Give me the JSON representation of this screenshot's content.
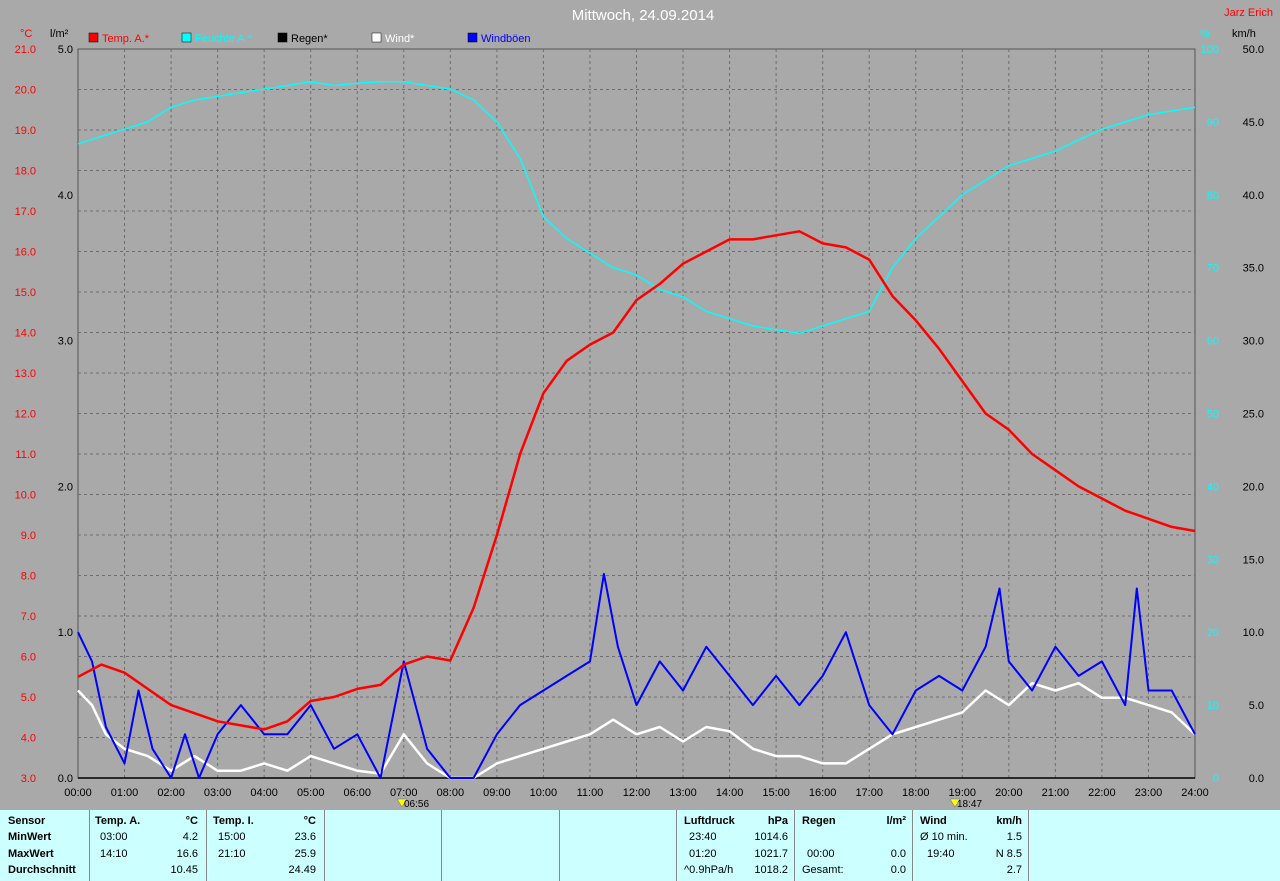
{
  "header": {
    "title": "Mittwoch, 24.09.2014",
    "author": "Jarz Erich",
    "unit_temp": "°C",
    "unit_rain": "l/m²",
    "unit_hum": "%",
    "unit_wind": "km/h"
  },
  "legend": [
    {
      "label": "Temp. A.*",
      "color": "#ff0000"
    },
    {
      "label": "Feuchte A.*",
      "color": "#00ffff"
    },
    {
      "label": "Regen*",
      "color": "#000000"
    },
    {
      "label": "Wind*",
      "color": "#ffffff"
    },
    {
      "label": "Windböen",
      "color": "#0000ff"
    }
  ],
  "markers": {
    "sunrise": "06:56",
    "sunset": "18:47"
  },
  "chart_data": {
    "type": "line",
    "title": "Mittwoch, 24.09.2014",
    "x_unit": "hours",
    "x_ticks": [
      "00:00",
      "01:00",
      "02:00",
      "03:00",
      "04:00",
      "05:00",
      "06:00",
      "07:00",
      "08:00",
      "09:00",
      "10:00",
      "11:00",
      "12:00",
      "13:00",
      "14:00",
      "15:00",
      "16:00",
      "17:00",
      "18:00",
      "19:00",
      "20:00",
      "21:00",
      "22:00",
      "23:00",
      "24:00"
    ],
    "axes": {
      "temp": {
        "ylim": [
          3.0,
          21.0
        ],
        "ticks": [
          "3.0",
          "4.0",
          "5.0",
          "6.0",
          "7.0",
          "8.0",
          "9.0",
          "10.0",
          "11.0",
          "12.0",
          "13.0",
          "14.0",
          "15.0",
          "16.0",
          "17.0",
          "18.0",
          "19.0",
          "20.0",
          "21.0"
        ]
      },
      "rain": {
        "ylim": [
          0.0,
          5.0
        ],
        "ticks": [
          "0.0",
          "1.0",
          "2.0",
          "3.0",
          "4.0",
          "5.0"
        ]
      },
      "hum": {
        "ylim": [
          0,
          100
        ],
        "ticks": [
          "0",
          "10",
          "20",
          "30",
          "40",
          "50",
          "60",
          "70",
          "80",
          "90",
          "100"
        ]
      },
      "wind": {
        "ylim": [
          0.0,
          50.0
        ],
        "ticks": [
          "0.0",
          "5.0",
          "10.0",
          "15.0",
          "20.0",
          "25.0",
          "30.0",
          "35.0",
          "40.0",
          "45.0",
          "50.0"
        ]
      }
    },
    "grid": true,
    "series": [
      {
        "name": "Temp. A.*",
        "axis": "temp",
        "color": "#ff0000",
        "points": [
          [
            0,
            5.5
          ],
          [
            0.5,
            5.8
          ],
          [
            1,
            5.6
          ],
          [
            1.5,
            5.2
          ],
          [
            2,
            4.8
          ],
          [
            2.5,
            4.6
          ],
          [
            3,
            4.4
          ],
          [
            3.5,
            4.3
          ],
          [
            4,
            4.2
          ],
          [
            4.5,
            4.4
          ],
          [
            5,
            4.9
          ],
          [
            5.5,
            5.0
          ],
          [
            6,
            5.2
          ],
          [
            6.5,
            5.3
          ],
          [
            7,
            5.8
          ],
          [
            7.5,
            6.0
          ],
          [
            8,
            5.9
          ],
          [
            8.5,
            7.2
          ],
          [
            9,
            9.0
          ],
          [
            9.5,
            11.0
          ],
          [
            10,
            12.5
          ],
          [
            10.5,
            13.3
          ],
          [
            11,
            13.7
          ],
          [
            11.5,
            14.0
          ],
          [
            12,
            14.8
          ],
          [
            12.5,
            15.2
          ],
          [
            13,
            15.7
          ],
          [
            13.5,
            16.0
          ],
          [
            14,
            16.3
          ],
          [
            14.5,
            16.3
          ],
          [
            15,
            16.4
          ],
          [
            15.5,
            16.5
          ],
          [
            16,
            16.2
          ],
          [
            16.5,
            16.1
          ],
          [
            17,
            15.8
          ],
          [
            17.5,
            14.9
          ],
          [
            18,
            14.3
          ],
          [
            18.5,
            13.6
          ],
          [
            19,
            12.8
          ],
          [
            19.5,
            12.0
          ],
          [
            20,
            11.6
          ],
          [
            20.5,
            11.0
          ],
          [
            21,
            10.6
          ],
          [
            21.5,
            10.2
          ],
          [
            22,
            9.9
          ],
          [
            22.5,
            9.6
          ],
          [
            23,
            9.4
          ],
          [
            23.5,
            9.2
          ],
          [
            24,
            9.1
          ]
        ]
      },
      {
        "name": "Feuchte A.*",
        "axis": "hum",
        "color": "#00ffff",
        "points": [
          [
            0,
            87
          ],
          [
            0.5,
            88
          ],
          [
            1,
            89
          ],
          [
            1.5,
            90
          ],
          [
            2,
            92
          ],
          [
            2.5,
            93
          ],
          [
            3,
            93.5
          ],
          [
            3.5,
            94
          ],
          [
            4,
            94.5
          ],
          [
            4.5,
            95
          ],
          [
            5,
            95.5
          ],
          [
            5.5,
            95
          ],
          [
            6,
            95.3
          ],
          [
            6.5,
            95.5
          ],
          [
            7,
            95.5
          ],
          [
            7.5,
            95
          ],
          [
            8,
            94.5
          ],
          [
            8.5,
            93
          ],
          [
            9,
            90
          ],
          [
            9.5,
            85
          ],
          [
            10,
            77
          ],
          [
            10.5,
            74
          ],
          [
            11,
            72
          ],
          [
            11.5,
            70
          ],
          [
            12,
            69
          ],
          [
            12.5,
            67
          ],
          [
            13,
            66
          ],
          [
            13.5,
            64
          ],
          [
            14,
            63
          ],
          [
            14.5,
            62
          ],
          [
            15,
            61.5
          ],
          [
            15.5,
            61
          ],
          [
            16,
            62
          ],
          [
            16.5,
            63
          ],
          [
            17,
            64
          ],
          [
            17.5,
            70
          ],
          [
            18,
            74
          ],
          [
            18.5,
            77
          ],
          [
            19,
            80
          ],
          [
            19.5,
            82
          ],
          [
            20,
            84
          ],
          [
            20.5,
            85
          ],
          [
            21,
            86
          ],
          [
            21.5,
            87.5
          ],
          [
            22,
            89
          ],
          [
            22.5,
            90
          ],
          [
            23,
            91
          ],
          [
            23.5,
            91.5
          ],
          [
            24,
            92
          ]
        ]
      },
      {
        "name": "Regen*",
        "axis": "rain",
        "color": "#000000",
        "points": [
          [
            0,
            0
          ],
          [
            24,
            0
          ]
        ]
      },
      {
        "name": "Wind*",
        "axis": "wind",
        "color": "#ffffff",
        "points": [
          [
            0,
            6
          ],
          [
            0.3,
            5
          ],
          [
            0.6,
            3
          ],
          [
            1,
            2
          ],
          [
            1.5,
            1.5
          ],
          [
            2,
            0.5
          ],
          [
            2.5,
            1.5
          ],
          [
            3,
            0.5
          ],
          [
            3.5,
            0.5
          ],
          [
            4,
            1
          ],
          [
            4.5,
            0.5
          ],
          [
            5,
            1.5
          ],
          [
            5.5,
            1
          ],
          [
            6,
            0.5
          ],
          [
            6.5,
            0.3
          ],
          [
            7,
            3
          ],
          [
            7.5,
            1
          ],
          [
            8,
            0
          ],
          [
            8.5,
            0
          ],
          [
            9,
            1
          ],
          [
            9.5,
            1.5
          ],
          [
            10,
            2
          ],
          [
            10.5,
            2.5
          ],
          [
            11,
            3
          ],
          [
            11.5,
            4
          ],
          [
            12,
            3
          ],
          [
            12.5,
            3.5
          ],
          [
            13,
            2.5
          ],
          [
            13.5,
            3.5
          ],
          [
            14,
            3.2
          ],
          [
            14.5,
            2
          ],
          [
            15,
            1.5
          ],
          [
            15.5,
            1.5
          ],
          [
            16,
            1
          ],
          [
            16.5,
            1
          ],
          [
            17,
            2
          ],
          [
            17.5,
            3
          ],
          [
            18,
            3.5
          ],
          [
            18.5,
            4
          ],
          [
            19,
            4.5
          ],
          [
            19.5,
            6
          ],
          [
            20,
            5
          ],
          [
            20.5,
            6.5
          ],
          [
            21,
            6
          ],
          [
            21.5,
            6.5
          ],
          [
            22,
            5.5
          ],
          [
            22.5,
            5.5
          ],
          [
            23,
            5
          ],
          [
            23.5,
            4.5
          ],
          [
            24,
            3
          ]
        ]
      },
      {
        "name": "Windböen",
        "axis": "wind",
        "color": "#0000ff",
        "points": [
          [
            0,
            10
          ],
          [
            0.3,
            8
          ],
          [
            0.6,
            3.5
          ],
          [
            1,
            1
          ],
          [
            1.3,
            6
          ],
          [
            1.6,
            2
          ],
          [
            2,
            0
          ],
          [
            2.3,
            3
          ],
          [
            2.6,
            0
          ],
          [
            3,
            3
          ],
          [
            3.5,
            5
          ],
          [
            4,
            3
          ],
          [
            4.5,
            3
          ],
          [
            5,
            5
          ],
          [
            5.5,
            2
          ],
          [
            6,
            3
          ],
          [
            6.5,
            0
          ],
          [
            7,
            8
          ],
          [
            7.5,
            2
          ],
          [
            8,
            0
          ],
          [
            8.5,
            0
          ],
          [
            9,
            3
          ],
          [
            9.5,
            5
          ],
          [
            10,
            6
          ],
          [
            10.5,
            7
          ],
          [
            11,
            8
          ],
          [
            11.3,
            14
          ],
          [
            11.6,
            9
          ],
          [
            12,
            5
          ],
          [
            12.5,
            8
          ],
          [
            13,
            6
          ],
          [
            13.5,
            9
          ],
          [
            14,
            7
          ],
          [
            14.5,
            5
          ],
          [
            15,
            7
          ],
          [
            15.5,
            5
          ],
          [
            16,
            7
          ],
          [
            16.5,
            10
          ],
          [
            17,
            5
          ],
          [
            17.5,
            3
          ],
          [
            18,
            6
          ],
          [
            18.5,
            7
          ],
          [
            19,
            6
          ],
          [
            19.5,
            9
          ],
          [
            19.8,
            13
          ],
          [
            20,
            8
          ],
          [
            20.5,
            6
          ],
          [
            21,
            9
          ],
          [
            21.5,
            7
          ],
          [
            22,
            8
          ],
          [
            22.5,
            5
          ],
          [
            22.75,
            13
          ],
          [
            23,
            6
          ],
          [
            23.5,
            6
          ],
          [
            24,
            3
          ]
        ]
      }
    ]
  },
  "panel": {
    "sensor": {
      "title": "Sensor",
      "rows": [
        "MinWert",
        "MaxWert",
        "Durchschnitt"
      ]
    },
    "temp_a": {
      "title": "Temp. A.",
      "unit": "°C",
      "rows": [
        [
          "03:00",
          "4.2"
        ],
        [
          "14:10",
          "16.6"
        ],
        [
          "",
          "10.45"
        ]
      ]
    },
    "temp_i": {
      "title": "Temp. I.",
      "unit": "°C",
      "rows": [
        [
          "15:00",
          "23.6"
        ],
        [
          "21:10",
          "25.9"
        ],
        [
          "",
          "24.49"
        ]
      ]
    },
    "luftdruck": {
      "title": "Luftdruck",
      "unit": "hPa",
      "rows": [
        [
          "23:40",
          "1014.6"
        ],
        [
          "01:20",
          "1021.7"
        ],
        [
          "^0.9hPa/h",
          "1018.2"
        ]
      ]
    },
    "regen": {
      "title": "Regen",
      "unit": "l/m²",
      "rows": [
        [
          "",
          ""
        ],
        [
          "00:00",
          "0.0"
        ],
        [
          "Gesamt:",
          "0.0"
        ]
      ]
    },
    "wind": {
      "title": "Wind",
      "unit": "km/h",
      "rows": [
        [
          "Ø 10 min.",
          "1.5"
        ],
        [
          "19:40",
          "N 8.5"
        ],
        [
          "",
          "2.7"
        ]
      ]
    }
  }
}
